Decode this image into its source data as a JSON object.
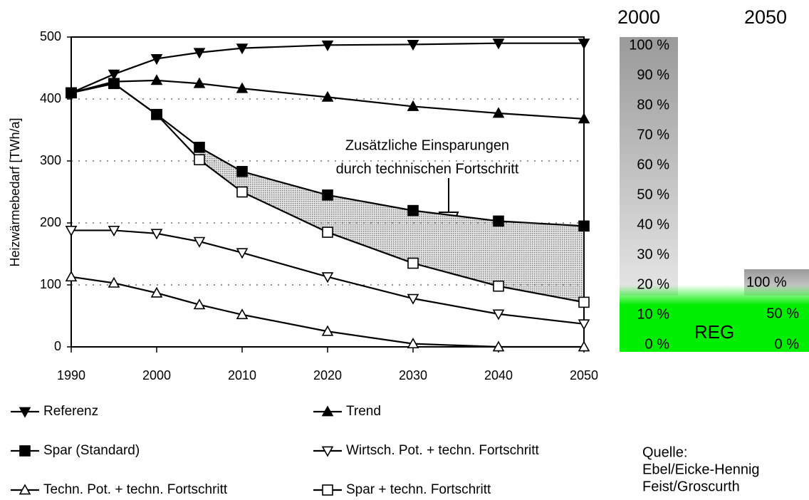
{
  "chart_data": {
    "type": "line",
    "y_label": "Heizwärmebedarf [TWh/a]",
    "annotation": [
      "Zusätzliche Einsparungen",
      "durch technischen Fortschritt"
    ],
    "x": [
      1990,
      1995,
      2000,
      2005,
      2010,
      2020,
      2030,
      2040,
      2050
    ],
    "xlim": [
      1990,
      2050
    ],
    "xticks": [
      1990,
      2000,
      2010,
      2020,
      2030,
      2040,
      2050
    ],
    "ylim": [
      0,
      500
    ],
    "yticks": [
      0,
      100,
      200,
      300,
      400,
      500
    ],
    "grid": true,
    "series": [
      {
        "name": "Referenz",
        "color": "#000000",
        "marker": "triangle-down",
        "marker_fill": true,
        "values": [
          410,
          440,
          465,
          475,
          482,
          487,
          488,
          490,
          490
        ]
      },
      {
        "name": "Trend",
        "color": "#000000",
        "marker": "triangle-up",
        "marker_fill": true,
        "values": [
          410,
          428,
          430,
          425,
          417,
          403,
          388,
          377,
          368
        ]
      },
      {
        "name": "Spar (Standard)",
        "color": "#000000",
        "marker": "square",
        "marker_fill": true,
        "values": [
          410,
          425,
          375,
          322,
          283,
          245,
          220,
          203,
          195
        ]
      },
      {
        "name": "Wirtsch. Pot. + techn. Fortschritt",
        "color": "#000000",
        "marker": "triangle-down",
        "marker_fill": false,
        "values": [
          188,
          188,
          183,
          170,
          152,
          113,
          78,
          53,
          37
        ]
      },
      {
        "name": "Techn. Pot. + techn. Fortschritt",
        "color": "#000000",
        "marker": "triangle-up",
        "marker_fill": false,
        "values": [
          113,
          103,
          87,
          68,
          52,
          25,
          5,
          0,
          0
        ]
      },
      {
        "name": "Spar + techn. Fortschritt",
        "color": "#000000",
        "marker": "square",
        "marker_fill": false,
        "values": [
          410,
          425,
          375,
          302,
          250,
          185,
          135,
          98,
          72
        ]
      }
    ]
  },
  "energy_mix": {
    "years": [
      "2000",
      "2050"
    ],
    "scale_2000": [
      "100 %",
      "90 %",
      "80 %",
      "70 %",
      "60 %",
      "50 %",
      "40 %",
      "30 %",
      "20 %",
      "10 %",
      "0 %"
    ],
    "scale_2050": [
      "100 %",
      "50 %",
      "0 %"
    ],
    "label": "REG"
  },
  "source": [
    "Quelle:",
    "Ebel/Eicke-Hennig",
    "Feist/Groscurth"
  ]
}
